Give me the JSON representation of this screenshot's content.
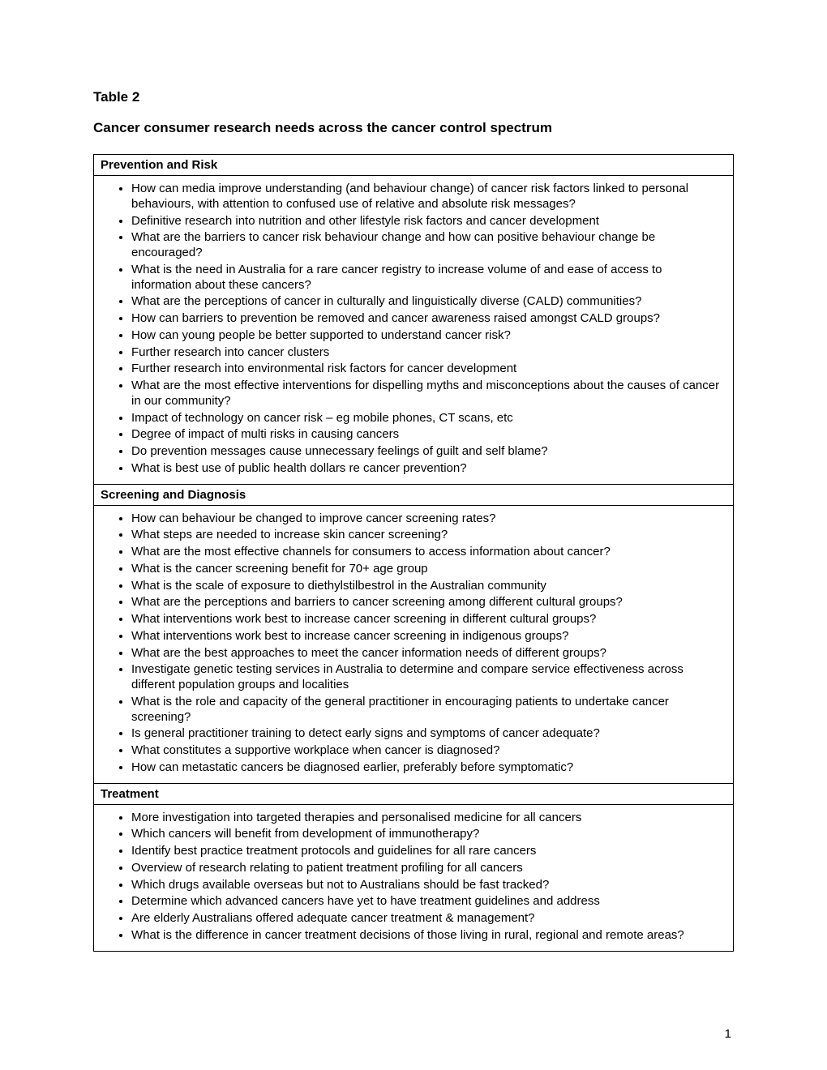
{
  "page": {
    "table_label": "Table 2",
    "title": "Cancer consumer research needs across the cancer control spectrum",
    "page_number": "1"
  },
  "sections": [
    {
      "header": "Prevention and Risk",
      "items": [
        "How can media improve understanding (and behaviour change) of cancer risk factors linked to personal behaviours, with attention to confused use of relative and absolute risk messages?",
        "Definitive research into nutrition and other lifestyle risk factors and cancer development",
        "What are the barriers to cancer risk behaviour change and how can positive behaviour change be encouraged?",
        "What is the need in Australia for a rare cancer registry to increase volume of and ease of access to information about these cancers?",
        "What are the perceptions of cancer in culturally and linguistically diverse (CALD) communities?",
        "How can barriers to prevention be removed and cancer awareness raised amongst CALD groups?",
        "How can young people be better supported to understand cancer risk?",
        "Further research into cancer clusters",
        "Further research into environmental risk factors for cancer development",
        "What are the most effective interventions for dispelling myths and misconceptions about the causes of cancer in our community?",
        "Impact of technology on cancer risk – eg mobile phones, CT scans, etc",
        "Degree of impact of multi risks in causing cancers",
        "Do prevention messages cause unnecessary feelings of guilt and self blame?",
        "What is best use of public health dollars re cancer prevention?"
      ]
    },
    {
      "header": "Screening and Diagnosis",
      "items": [
        "How can behaviour be changed to improve cancer screening rates?",
        "What steps are needed to increase skin cancer screening?",
        "What are the most effective channels for consumers to access information about cancer?",
        "What is the cancer screening benefit for 70+ age group",
        "What is the scale of exposure to diethylstilbestrol in the Australian community",
        "What are the perceptions and barriers to cancer screening among different cultural groups?",
        "What interventions work best to increase cancer screening in different cultural groups?",
        "What interventions work best to increase cancer screening in indigenous groups?",
        "What are the best approaches to meet the cancer information needs of different groups?",
        "Investigate genetic testing services in Australia to determine and compare service effectiveness across different population groups and localities",
        "What is the role and capacity of the general practitioner in encouraging patients to undertake cancer screening?",
        "Is general practitioner training to detect early signs and symptoms of cancer adequate?",
        "What constitutes a supportive workplace when cancer is diagnosed?",
        "How can metastatic cancers be diagnosed earlier, preferably before symptomatic?"
      ]
    },
    {
      "header": "Treatment",
      "items": [
        "More investigation into targeted therapies and personalised medicine for all cancers",
        "Which cancers will benefit from development of immunotherapy?",
        "Identify best practice treatment protocols and guidelines for all rare cancers",
        "Overview of research relating to patient treatment profiling for all cancers",
        "Which drugs available overseas but not to Australians should be fast tracked?",
        "Determine which advanced cancers have yet to have treatment guidelines and address",
        "Are elderly Australians offered adequate cancer treatment & management?",
        "What is the difference in cancer treatment decisions of those living in rural, regional and remote areas?"
      ]
    }
  ]
}
